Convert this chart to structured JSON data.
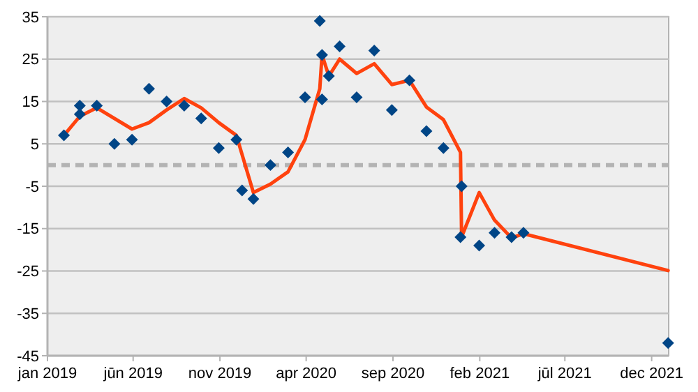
{
  "chart_data": {
    "type": "scatter",
    "xlim": [
      "2019-01-01",
      "2021-12-31"
    ],
    "xticks": [
      {
        "value": "2019-01-01",
        "label": "jan 2019"
      },
      {
        "value": "2019-06-01",
        "label": "jūn 2019"
      },
      {
        "value": "2019-11-01",
        "label": "nov 2019"
      },
      {
        "value": "2020-04-01",
        "label": "apr 2020"
      },
      {
        "value": "2020-09-01",
        "label": "sep 2020"
      },
      {
        "value": "2021-02-01",
        "label": "feb 2021"
      },
      {
        "value": "2021-07-01",
        "label": "jūl 2021"
      },
      {
        "value": "2021-12-01",
        "label": "dec 2021"
      }
    ],
    "ylim": [
      -45,
      35
    ],
    "yticks": [
      -45,
      -35,
      -25,
      -15,
      -5,
      5,
      15,
      25,
      35
    ],
    "grid": "y",
    "ref_lines": [
      {
        "axis": "y",
        "value": 0,
        "color": "#b3b3b3",
        "line_style": "dashed"
      }
    ],
    "series": [
      {
        "marker": "diamond",
        "color": "#004586",
        "x": [
          "2019-01-30",
          "2019-02-27",
          "2019-02-27",
          "2019-03-29",
          "2019-04-29",
          "2019-05-30",
          "2019-06-29",
          "2019-07-30",
          "2019-08-30",
          "2019-09-29",
          "2019-10-30",
          "2019-11-30",
          "2019-12-10",
          "2019-12-30",
          "2020-01-29",
          "2020-02-29",
          "2020-03-30",
          "2020-04-25",
          "2020-04-29",
          "2020-04-29",
          "2020-05-11",
          "2020-05-30",
          "2020-06-29",
          "2020-07-30",
          "2020-08-30",
          "2020-09-30",
          "2020-10-30",
          "2020-11-29",
          "2020-12-31",
          "2020-12-29",
          "2021-01-31",
          "2021-02-27",
          "2021-03-29",
          "2021-04-19",
          "2021-12-30"
        ],
        "values": [
          7,
          14,
          12,
          14,
          5,
          6,
          18,
          15,
          14,
          11,
          4,
          6,
          -6,
          -8,
          0,
          3,
          16,
          34,
          26,
          15.5,
          21,
          28,
          16,
          27,
          13,
          20,
          8,
          4,
          -5,
          -17,
          -19,
          -16,
          -17,
          -16,
          -42
        ]
      },
      {
        "type": "line",
        "marker": "none",
        "line_style": "solid",
        "color": "#ff420e",
        "x": [
          "2019-01-30",
          "2019-02-27",
          "2019-03-29",
          "2019-05-30",
          "2019-06-29",
          "2019-07-30",
          "2019-08-30",
          "2019-09-29",
          "2019-10-30",
          "2019-11-30",
          "2019-12-30",
          "2020-01-29",
          "2020-02-29",
          "2020-03-30",
          "2020-04-25",
          "2020-04-29",
          "2020-05-11",
          "2020-05-30",
          "2020-06-29",
          "2020-07-30",
          "2020-08-30",
          "2020-09-30",
          "2020-10-30",
          "2020-11-29",
          "2020-12-29",
          "2020-12-31",
          "2021-01-31",
          "2021-02-27",
          "2021-03-29",
          "2021-04-19",
          "2021-12-30"
        ],
        "values": [
          7,
          11.5,
          13.5,
          8.5,
          10,
          13,
          15.7,
          13.5,
          10,
          7,
          -6.5,
          -4.5,
          -1.6,
          6,
          18,
          26,
          21,
          25,
          21.6,
          23.9,
          19,
          20,
          13.7,
          10.7,
          3,
          -17,
          -6.5,
          -13,
          -17.2,
          -16.2,
          -24.9
        ]
      }
    ]
  }
}
